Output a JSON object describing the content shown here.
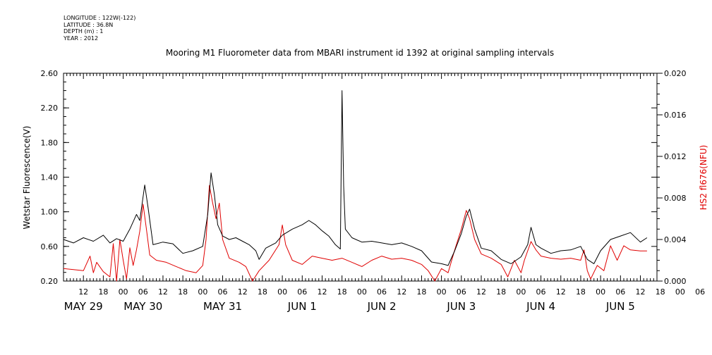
{
  "meta": {
    "longitude": "LONGITUDE : 122W(-122)",
    "latitude": "LATITUDE : 36.8N",
    "depth": "DEPTH (m) : 1",
    "year": "YEAR : 2012"
  },
  "chart_data": {
    "type": "line",
    "title": "Mooring M1 Fluorometer data from MBARI instrument id 1392 at original sampling intervals",
    "ylabel": "Wetstar Fluorescence(V)",
    "y2label": "HS2 fl676(NFU)",
    "ylim": [
      0.2,
      2.6
    ],
    "y2lim": [
      0.0,
      0.02
    ],
    "xlim": [
      "2012-05-29T06:00",
      "2012-06-05T17:00"
    ],
    "y_ticks": [
      "0.20",
      "0.60",
      "1.00",
      "1.40",
      "1.80",
      "2.20",
      "2.60"
    ],
    "y2_ticks": [
      "0.000",
      "0.004",
      "0.008",
      "0.012",
      "0.016",
      "0.020"
    ],
    "x_hour_ticks": [
      "12",
      "18",
      "00",
      "06",
      "12",
      "18",
      "00",
      "06",
      "12",
      "18",
      "00",
      "06",
      "12",
      "18",
      "00",
      "06",
      "12",
      "18",
      "00",
      "06",
      "12",
      "18",
      "00",
      "06",
      "12",
      "18",
      "00",
      "06",
      "12",
      "18",
      "00",
      "06"
    ],
    "x_date_labels": [
      {
        "label": "MAY 29",
        "at": "2012-05-29T12:00"
      },
      {
        "label": "MAY 30",
        "at": "2012-05-30T06:00"
      },
      {
        "label": "MAY 31",
        "at": "2012-05-31T06:00"
      },
      {
        "label": "JUN  1",
        "at": "2012-06-01T06:00"
      },
      {
        "label": "JUN  2",
        "at": "2012-06-02T06:00"
      },
      {
        "label": "JUN  3",
        "at": "2012-06-03T06:00"
      },
      {
        "label": "JUN  4",
        "at": "2012-06-04T06:00"
      },
      {
        "label": "JUN  5",
        "at": "2012-06-05T06:00"
      }
    ],
    "series": [
      {
        "name": "Wetstar Fluorescence(V)",
        "axis": "left",
        "color": "#000000",
        "points": [
          [
            "2012-05-29T06:00",
            0.68
          ],
          [
            "2012-05-29T09:00",
            0.64
          ],
          [
            "2012-05-29T12:00",
            0.7
          ],
          [
            "2012-05-29T15:00",
            0.66
          ],
          [
            "2012-05-29T18:00",
            0.73
          ],
          [
            "2012-05-29T20:00",
            0.64
          ],
          [
            "2012-05-29T22:00",
            0.69
          ],
          [
            "2012-05-30T00:00",
            0.66
          ],
          [
            "2012-05-30T02:00",
            0.8
          ],
          [
            "2012-05-30T04:00",
            0.97
          ],
          [
            "2012-05-30T05:00",
            0.9
          ],
          [
            "2012-05-30T06:30",
            1.31
          ],
          [
            "2012-05-30T07:30",
            1.05
          ],
          [
            "2012-05-30T09:00",
            0.62
          ],
          [
            "2012-05-30T12:00",
            0.65
          ],
          [
            "2012-05-30T15:00",
            0.63
          ],
          [
            "2012-05-30T18:00",
            0.52
          ],
          [
            "2012-05-30T21:00",
            0.55
          ],
          [
            "2012-05-31T00:00",
            0.6
          ],
          [
            "2012-05-31T01:30",
            0.97
          ],
          [
            "2012-05-31T02:30",
            1.45
          ],
          [
            "2012-05-31T03:30",
            1.2
          ],
          [
            "2012-05-31T04:30",
            0.85
          ],
          [
            "2012-05-31T06:00",
            0.72
          ],
          [
            "2012-05-31T08:00",
            0.68
          ],
          [
            "2012-05-31T10:00",
            0.7
          ],
          [
            "2012-05-31T12:00",
            0.66
          ],
          [
            "2012-05-31T14:00",
            0.62
          ],
          [
            "2012-05-31T16:00",
            0.55
          ],
          [
            "2012-05-31T17:00",
            0.45
          ],
          [
            "2012-05-31T19:00",
            0.58
          ],
          [
            "2012-05-31T22:00",
            0.64
          ],
          [
            "2012-06-01T00:00",
            0.73
          ],
          [
            "2012-06-01T03:00",
            0.8
          ],
          [
            "2012-06-01T06:00",
            0.85
          ],
          [
            "2012-06-01T08:00",
            0.9
          ],
          [
            "2012-06-01T10:00",
            0.85
          ],
          [
            "2012-06-01T12:00",
            0.78
          ],
          [
            "2012-06-01T14:00",
            0.72
          ],
          [
            "2012-06-01T16:00",
            0.62
          ],
          [
            "2012-06-01T17:30",
            0.57
          ],
          [
            "2012-06-01T18:00",
            2.4
          ],
          [
            "2012-06-01T18:30",
            1.3
          ],
          [
            "2012-06-01T19:00",
            0.8
          ],
          [
            "2012-06-01T21:00",
            0.7
          ],
          [
            "2012-06-02T00:00",
            0.65
          ],
          [
            "2012-06-02T03:00",
            0.66
          ],
          [
            "2012-06-02T06:00",
            0.64
          ],
          [
            "2012-06-02T09:00",
            0.62
          ],
          [
            "2012-06-02T12:00",
            0.64
          ],
          [
            "2012-06-02T15:00",
            0.6
          ],
          [
            "2012-06-02T18:00",
            0.55
          ],
          [
            "2012-06-02T21:00",
            0.42
          ],
          [
            "2012-06-03T00:00",
            0.4
          ],
          [
            "2012-06-03T02:00",
            0.38
          ],
          [
            "2012-06-03T04:00",
            0.55
          ],
          [
            "2012-06-03T06:00",
            0.75
          ],
          [
            "2012-06-03T07:30",
            0.95
          ],
          [
            "2012-06-03T08:30",
            1.03
          ],
          [
            "2012-06-03T10:00",
            0.8
          ],
          [
            "2012-06-03T12:00",
            0.58
          ],
          [
            "2012-06-03T15:00",
            0.55
          ],
          [
            "2012-06-03T18:00",
            0.45
          ],
          [
            "2012-06-03T21:00",
            0.4
          ],
          [
            "2012-06-04T00:00",
            0.48
          ],
          [
            "2012-06-04T02:00",
            0.62
          ],
          [
            "2012-06-04T03:00",
            0.82
          ],
          [
            "2012-06-04T04:30",
            0.62
          ],
          [
            "2012-06-04T06:00",
            0.58
          ],
          [
            "2012-06-04T09:00",
            0.52
          ],
          [
            "2012-06-04T12:00",
            0.55
          ],
          [
            "2012-06-04T15:00",
            0.56
          ],
          [
            "2012-06-04T18:00",
            0.6
          ],
          [
            "2012-06-04T20:00",
            0.45
          ],
          [
            "2012-06-04T22:00",
            0.4
          ],
          [
            "2012-06-05T00:00",
            0.55
          ],
          [
            "2012-06-05T03:00",
            0.68
          ],
          [
            "2012-06-05T06:00",
            0.72
          ],
          [
            "2012-06-05T09:00",
            0.76
          ],
          [
            "2012-06-05T12:00",
            0.65
          ],
          [
            "2012-06-05T14:00",
            0.7
          ]
        ]
      },
      {
        "name": "HS2 fl676(NFU)",
        "axis": "right",
        "color": "#e00000",
        "points": [
          [
            "2012-05-29T06:00",
            0.0012
          ],
          [
            "2012-05-29T09:00",
            0.0011
          ],
          [
            "2012-05-29T12:00",
            0.001
          ],
          [
            "2012-05-29T14:00",
            0.0024
          ],
          [
            "2012-05-29T15:00",
            0.0008
          ],
          [
            "2012-05-29T16:00",
            0.0018
          ],
          [
            "2012-05-29T18:00",
            0.0009
          ],
          [
            "2012-05-29T20:00",
            0.0004
          ],
          [
            "2012-05-29T21:00",
            0.0036
          ],
          [
            "2012-05-29T22:00",
            0.0
          ],
          [
            "2012-05-29T23:00",
            0.004
          ],
          [
            "2012-05-30T00:00",
            0.002
          ],
          [
            "2012-05-30T01:00",
            0.0002
          ],
          [
            "2012-05-30T02:00",
            0.0032
          ],
          [
            "2012-05-30T03:00",
            0.0015
          ],
          [
            "2012-05-30T04:00",
            0.003
          ],
          [
            "2012-05-30T05:00",
            0.0048
          ],
          [
            "2012-05-30T06:00",
            0.0074
          ],
          [
            "2012-05-30T07:00",
            0.005
          ],
          [
            "2012-05-30T08:00",
            0.0025
          ],
          [
            "2012-05-30T10:00",
            0.002
          ],
          [
            "2012-05-30T13:00",
            0.0018
          ],
          [
            "2012-05-30T16:00",
            0.0014
          ],
          [
            "2012-05-30T19:00",
            0.001
          ],
          [
            "2012-05-30T22:00",
            0.0008
          ],
          [
            "2012-05-31T00:00",
            0.0015
          ],
          [
            "2012-05-31T01:00",
            0.004
          ],
          [
            "2012-05-31T02:00",
            0.0092
          ],
          [
            "2012-05-31T03:00",
            0.0075
          ],
          [
            "2012-05-31T04:00",
            0.006
          ],
          [
            "2012-05-31T05:00",
            0.0075
          ],
          [
            "2012-05-31T06:00",
            0.004
          ],
          [
            "2012-05-31T08:00",
            0.0022
          ],
          [
            "2012-05-31T11:00",
            0.0018
          ],
          [
            "2012-05-31T13:00",
            0.0014
          ],
          [
            "2012-05-31T15:00",
            0.0
          ],
          [
            "2012-05-31T17:00",
            0.001
          ],
          [
            "2012-05-31T20:00",
            0.002
          ],
          [
            "2012-05-31T23:00",
            0.0035
          ],
          [
            "2012-06-01T00:00",
            0.0054
          ],
          [
            "2012-06-01T01:00",
            0.0035
          ],
          [
            "2012-06-01T03:00",
            0.002
          ],
          [
            "2012-06-01T06:00",
            0.0016
          ],
          [
            "2012-06-01T09:00",
            0.0024
          ],
          [
            "2012-06-01T12:00",
            0.0022
          ],
          [
            "2012-06-01T15:00",
            0.002
          ],
          [
            "2012-06-01T18:00",
            0.0022
          ],
          [
            "2012-06-01T21:00",
            0.0018
          ],
          [
            "2012-06-02T00:00",
            0.0014
          ],
          [
            "2012-06-02T03:00",
            0.002
          ],
          [
            "2012-06-02T06:00",
            0.0024
          ],
          [
            "2012-06-02T09:00",
            0.0021
          ],
          [
            "2012-06-02T12:00",
            0.0022
          ],
          [
            "2012-06-02T15:00",
            0.002
          ],
          [
            "2012-06-02T18:00",
            0.0016
          ],
          [
            "2012-06-02T20:00",
            0.001
          ],
          [
            "2012-06-02T22:00",
            0.0
          ],
          [
            "2012-06-03T00:00",
            0.0012
          ],
          [
            "2012-06-03T02:00",
            0.0008
          ],
          [
            "2012-06-03T04:00",
            0.003
          ],
          [
            "2012-06-03T06:00",
            0.005
          ],
          [
            "2012-06-03T07:30",
            0.0068
          ],
          [
            "2012-06-03T08:30",
            0.006
          ],
          [
            "2012-06-03T10:00",
            0.004
          ],
          [
            "2012-06-03T12:00",
            0.0026
          ],
          [
            "2012-06-03T15:00",
            0.0022
          ],
          [
            "2012-06-03T18:00",
            0.0016
          ],
          [
            "2012-06-03T20:00",
            0.0004
          ],
          [
            "2012-06-03T22:00",
            0.002
          ],
          [
            "2012-06-04T00:00",
            0.0008
          ],
          [
            "2012-06-04T01:00",
            0.002
          ],
          [
            "2012-06-04T03:00",
            0.0038
          ],
          [
            "2012-06-04T04:30",
            0.003
          ],
          [
            "2012-06-04T06:00",
            0.0024
          ],
          [
            "2012-06-04T09:00",
            0.0022
          ],
          [
            "2012-06-04T12:00",
            0.0021
          ],
          [
            "2012-06-04T15:00",
            0.0022
          ],
          [
            "2012-06-04T18:00",
            0.002
          ],
          [
            "2012-06-04T19:00",
            0.003
          ],
          [
            "2012-06-04T20:00",
            0.001
          ],
          [
            "2012-06-04T21:00",
            0.0002
          ],
          [
            "2012-06-04T23:00",
            0.0015
          ],
          [
            "2012-06-05T01:00",
            0.001
          ],
          [
            "2012-06-05T03:00",
            0.0034
          ],
          [
            "2012-06-05T05:00",
            0.002
          ],
          [
            "2012-06-05T07:00",
            0.0034
          ],
          [
            "2012-06-05T09:00",
            0.003
          ],
          [
            "2012-06-05T12:00",
            0.0029
          ],
          [
            "2012-06-05T14:00",
            0.0029
          ]
        ]
      }
    ]
  }
}
